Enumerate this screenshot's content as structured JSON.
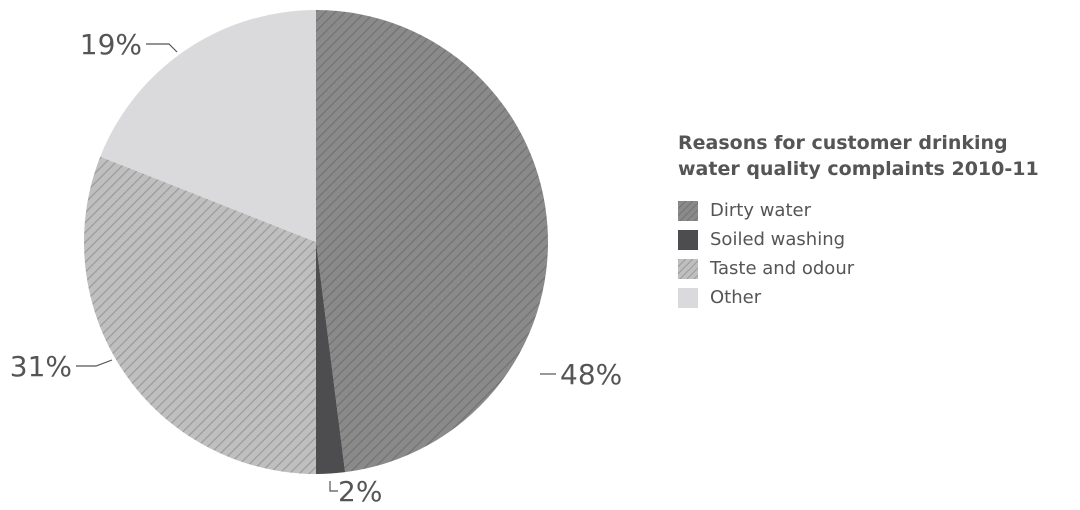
{
  "chart_data": {
    "type": "pie",
    "title_lines": [
      "Reasons for customer drinking",
      "water quality complaints 2010-11"
    ],
    "slices": [
      {
        "label": "Dirty water",
        "value": 48,
        "display": "48%",
        "fill": "#8a8a8a",
        "stripe": "#6f6f6f",
        "pattern": "hatch-dark"
      },
      {
        "label": "Soiled washing",
        "value": 2,
        "display": "2%",
        "fill": "#4d4d4f",
        "pattern": "solid"
      },
      {
        "label": "Taste and odour",
        "value": 31,
        "display": "31%",
        "fill": "#bdbdbd",
        "stripe": "#8f8f8f",
        "pattern": "hatch-light"
      },
      {
        "label": "Other",
        "value": 19,
        "display": "19%",
        "fill": "#dadadc",
        "pattern": "solid"
      }
    ],
    "legend_position": "right",
    "text_color": "#555555"
  }
}
